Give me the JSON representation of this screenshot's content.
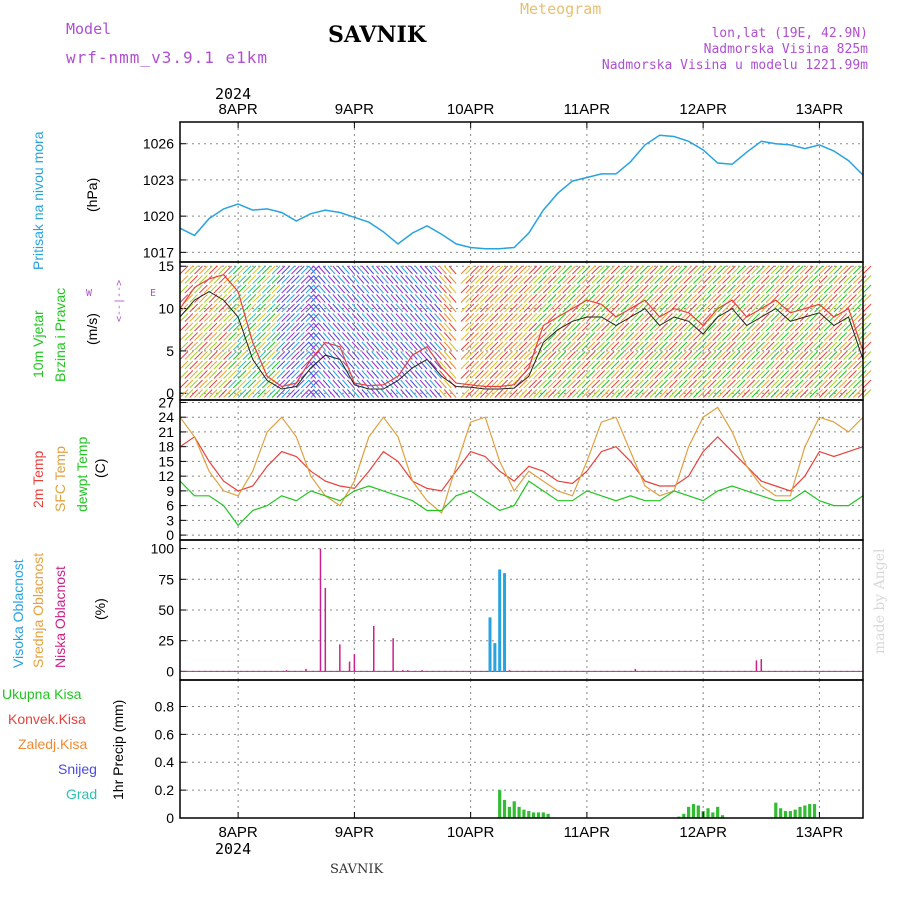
{
  "header": {
    "model_label": "Model",
    "model_name": "wrf-nmm_v3.9.1 e1km",
    "station": "SAVNIK",
    "app_title": "Meteogram",
    "location": "lon,lat (19E, 42.9N)",
    "elevation": "Nadmorska Visina 825m",
    "model_elevation": "Nadmorska Visina u modelu 1221.99m",
    "year_top": "2024",
    "year_bottom": "2024",
    "footer_station": "SAVNIK",
    "watermark": "made by Angel"
  },
  "colors": {
    "pressure": "#29a3e0",
    "temp2m": "#e8413c",
    "sfc": "#e0a040",
    "dewpt": "#22c522",
    "high_cloud": "#29a3e0",
    "mid_cloud": "#e8a03c",
    "low_cloud": "#cc1f8a",
    "precip_total": "#33bb33",
    "purple_text": "#b04fd0",
    "gold_text": "#e8c070"
  },
  "dates": [
    "8APR",
    "9APR",
    "10APR",
    "11APR",
    "12APR",
    "13APR"
  ],
  "chart_data": [
    {
      "type": "line",
      "panel": "pressure",
      "ylabel": "(hPa)",
      "series_label": "Pritisak na nivou mora",
      "yticks": [
        1017,
        1020,
        1023,
        1026
      ],
      "ylim": [
        1016.2,
        1027.8
      ],
      "xlim": [
        0,
        141
      ],
      "x_hours": [
        0,
        3,
        6,
        9,
        12,
        15,
        18,
        21,
        24,
        27,
        30,
        33,
        36,
        39,
        42,
        45,
        48,
        51,
        54,
        57,
        60,
        63,
        66,
        69,
        72,
        75,
        78,
        81,
        84,
        87,
        90,
        93,
        96,
        99,
        102,
        105,
        108,
        111,
        114,
        117,
        120,
        123,
        126,
        129,
        132,
        135,
        138,
        141
      ],
      "series": [
        {
          "values": [
            1019,
            1018.4,
            1019.8,
            1020.6,
            1021,
            1020.5,
            1020.6,
            1020.3,
            1019.6,
            1020.2,
            1020.5,
            1020.3,
            1019.9,
            1019.5,
            1018.7,
            1017.7,
            1018.6,
            1019.2,
            1018.5,
            1017.7,
            1017.4,
            1017.3,
            1017.3,
            1017.4,
            1018.6,
            1020.5,
            1021.9,
            1022.9,
            1023.2,
            1023.5,
            1023.5,
            1024.5,
            1025.9,
            1026.7,
            1026.6,
            1026.2,
            1025.5,
            1024.4,
            1024.3,
            1025.3,
            1026.2,
            1026,
            1025.9,
            1025.6,
            1025.9,
            1025.4,
            1024.6,
            1023.4
          ]
        }
      ]
    },
    {
      "type": "line",
      "panel": "wind",
      "ylabel": "(m/s)",
      "series_label": "10m Vjetar Brzina i Pravac",
      "direction_key": [
        "W",
        "<--|-->",
        "E"
      ],
      "yticks": [
        0,
        5,
        10,
        15
      ],
      "ylim": [
        -0.8,
        15.5
      ],
      "x_hours": [
        0,
        3,
        6,
        9,
        12,
        15,
        18,
        21,
        24,
        27,
        30,
        33,
        36,
        39,
        42,
        45,
        48,
        51,
        54,
        57,
        60,
        63,
        66,
        69,
        72,
        75,
        78,
        81,
        84,
        87,
        90,
        93,
        96,
        99,
        102,
        105,
        108,
        111,
        114,
        117,
        120,
        123,
        126,
        129,
        132,
        135,
        138,
        141
      ],
      "series": [
        {
          "values": [
            10,
            12.5,
            13.5,
            14,
            12,
            6,
            2,
            0.8,
            1.2,
            4,
            6,
            5.5,
            1.2,
            0.9,
            1,
            2,
            4.5,
            5.5,
            3,
            1.2,
            1,
            0.8,
            0.8,
            1,
            3,
            8,
            9,
            10,
            11,
            10.5,
            9,
            10,
            11,
            9,
            10,
            9.5,
            8,
            10,
            11,
            9,
            10,
            11,
            9.5,
            10,
            10.5,
            9,
            10,
            5
          ]
        },
        {
          "values": [
            9,
            11,
            12,
            11,
            9,
            4,
            1.5,
            0.5,
            0.8,
            3,
            4.5,
            4,
            1,
            0.5,
            0.5,
            1.5,
            3,
            4,
            2,
            0.8,
            0.7,
            0.5,
            0.5,
            0.6,
            2,
            6,
            7.5,
            8.5,
            9,
            9,
            8,
            9,
            10,
            8,
            9,
            8.5,
            7,
            9,
            10,
            8,
            9,
            10,
            8.5,
            9,
            9.5,
            8,
            9,
            4
          ]
        }
      ]
    },
    {
      "type": "line",
      "panel": "temperature",
      "ylabel": "(C)",
      "series_label": [
        "2m Temp",
        "SFC Temp",
        "dewpt Temp"
      ],
      "yticks": [
        0,
        3,
        6,
        9,
        12,
        15,
        18,
        21,
        24,
        27
      ],
      "ylim": [
        -1,
        27.5
      ],
      "x_hours": [
        0,
        3,
        6,
        9,
        12,
        15,
        18,
        21,
        24,
        27,
        30,
        33,
        36,
        39,
        42,
        45,
        48,
        51,
        54,
        57,
        60,
        63,
        66,
        69,
        72,
        75,
        78,
        81,
        84,
        87,
        90,
        93,
        96,
        99,
        102,
        105,
        108,
        111,
        114,
        117,
        120,
        123,
        126,
        129,
        132,
        135,
        138,
        141
      ],
      "series": [
        {
          "name": "2m Temp",
          "values": [
            18,
            20,
            15,
            11,
            9,
            10,
            14,
            17,
            16,
            13,
            11,
            10,
            9.5,
            13,
            17,
            15,
            11,
            9.5,
            9,
            13,
            17,
            16,
            13,
            11,
            14,
            13,
            11,
            10.5,
            13,
            17,
            18,
            15,
            11,
            10,
            10,
            12,
            17,
            20,
            17,
            14,
            11,
            10,
            9,
            12,
            17,
            16,
            17,
            18
          ]
        },
        {
          "name": "SFC Temp",
          "values": [
            24,
            20,
            13,
            9,
            8,
            13,
            21,
            24,
            20,
            12,
            8,
            6,
            11,
            20,
            24,
            20,
            11,
            7,
            4.5,
            14,
            23,
            24,
            15,
            9,
            13,
            11,
            9,
            8,
            15,
            23,
            24,
            17,
            10,
            8,
            9,
            18,
            24,
            26,
            21,
            14,
            10,
            8,
            8,
            18,
            24,
            23,
            21,
            24
          ]
        },
        {
          "name": "dewpt Temp",
          "values": [
            11,
            8,
            8,
            6,
            2,
            5,
            6,
            8,
            7,
            9,
            8,
            7,
            9,
            10,
            9,
            8,
            7,
            5,
            5,
            8,
            9,
            7,
            5,
            6,
            11,
            9,
            7,
            7,
            9,
            8,
            7,
            8,
            7,
            7,
            9,
            8,
            7,
            9,
            10,
            9,
            8,
            7,
            7,
            9,
            7,
            6,
            6,
            8
          ]
        }
      ]
    },
    {
      "type": "bar",
      "panel": "clouds",
      "ylabel": "(%)",
      "series_label": [
        "Visoka Oblacnost",
        "Srednja Oblacnost",
        "Niska Oblacnost"
      ],
      "yticks": [
        0,
        25,
        50,
        75,
        100
      ],
      "ylim": [
        -7,
        107
      ],
      "series": [
        {
          "name": "Visoka Oblacnost",
          "points": [
            [
              64,
              44
            ],
            [
              65,
              23
            ],
            [
              66,
              83
            ],
            [
              67,
              80
            ]
          ]
        },
        {
          "name": "Srednja Oblacnost",
          "points": []
        },
        {
          "name": "Niska Oblacnost",
          "points": [
            [
              22,
              1
            ],
            [
              26,
              2
            ],
            [
              29,
              100
            ],
            [
              30,
              68
            ],
            [
              33,
              22
            ],
            [
              35,
              8
            ],
            [
              36,
              14
            ],
            [
              40,
              37
            ],
            [
              44,
              27
            ],
            [
              46,
              1
            ],
            [
              47,
              1
            ],
            [
              50,
              1
            ],
            [
              68,
              1
            ],
            [
              94,
              2
            ],
            [
              119,
              9
            ],
            [
              120,
              10
            ]
          ]
        }
      ]
    },
    {
      "type": "bar",
      "panel": "precip",
      "ylabel": "1hr Precip (mm)",
      "series_label": [
        "Ukupna Kisa",
        "Konvek.Kisa",
        "Zaledj.Kisa",
        "Snijeg",
        "Grad"
      ],
      "yticks": [
        0,
        0.2,
        0.4,
        0.6,
        0.8
      ],
      "ylim": [
        0,
        0.99
      ],
      "series": [
        {
          "name": "Ukupna Kisa",
          "points": [
            [
              66,
              0.2
            ],
            [
              67,
              0.13
            ],
            [
              68,
              0.08
            ],
            [
              69,
              0.12
            ],
            [
              70,
              0.08
            ],
            [
              71,
              0.06
            ],
            [
              72,
              0.05
            ],
            [
              73,
              0.04
            ],
            [
              74,
              0.04
            ],
            [
              75,
              0.04
            ],
            [
              76,
              0.03
            ],
            [
              103,
              0.01
            ],
            [
              104,
              0.03
            ],
            [
              105,
              0.08
            ],
            [
              106,
              0.1
            ],
            [
              107,
              0.09
            ],
            [
              108,
              0.05
            ],
            [
              109,
              0.07
            ],
            [
              110,
              0.04
            ],
            [
              111,
              0.08
            ],
            [
              112,
              0.02
            ],
            [
              123,
              0.11
            ],
            [
              124,
              0.07
            ],
            [
              125,
              0.05
            ],
            [
              126,
              0.05
            ],
            [
              127,
              0.06
            ],
            [
              128,
              0.08
            ],
            [
              129,
              0.09
            ],
            [
              130,
              0.1
            ],
            [
              131,
              0.1
            ]
          ]
        }
      ]
    }
  ]
}
